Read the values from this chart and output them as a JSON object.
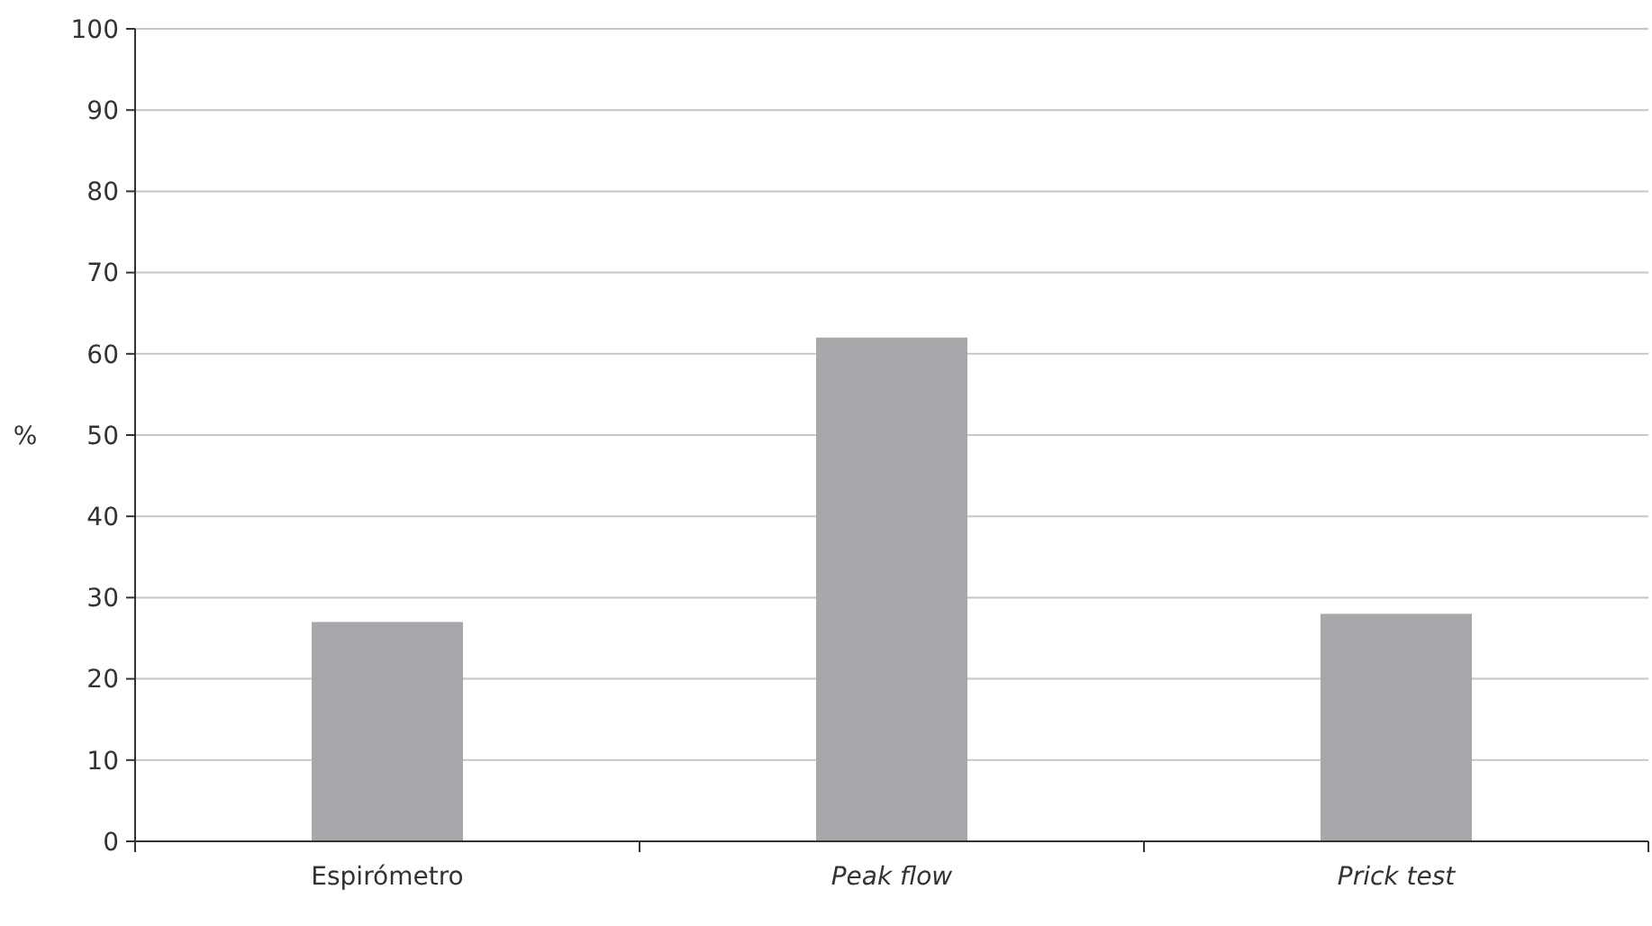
{
  "chart_data": {
    "type": "bar",
    "ylabel": "%",
    "categories": [
      "Espirómetro",
      "Peak flow",
      "Prick test"
    ],
    "values": [
      27,
      62,
      28
    ],
    "color": "#a7a8ab",
    "ylim": [
      0,
      100
    ],
    "yticks": [
      0,
      10,
      20,
      30,
      40,
      50,
      60,
      70,
      80,
      90,
      100
    ],
    "grid": "y"
  }
}
